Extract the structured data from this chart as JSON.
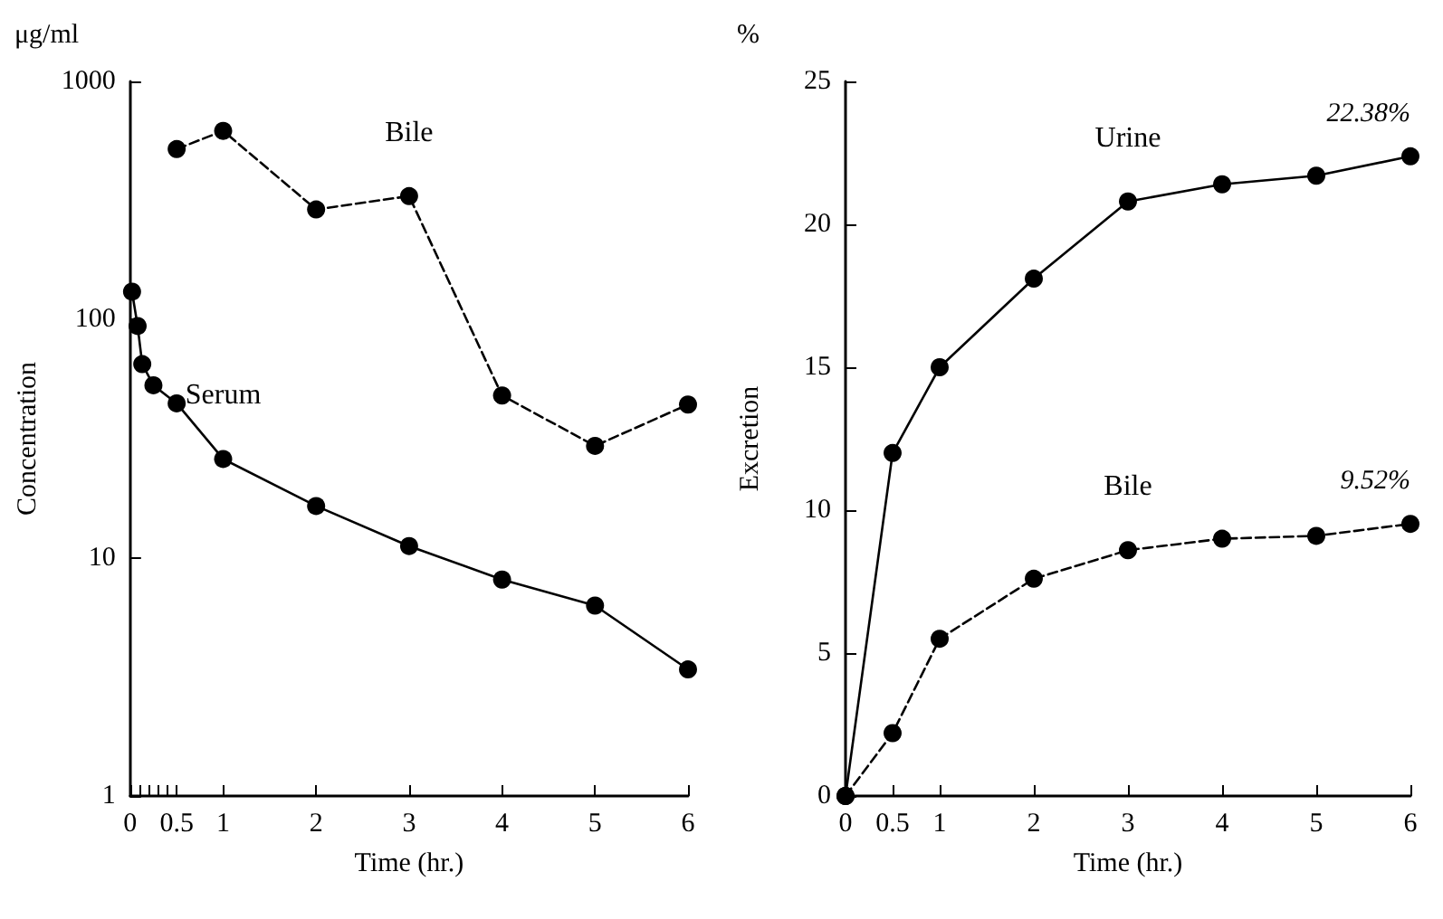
{
  "chart_data": [
    {
      "type": "line",
      "xlabel": "Time (hr.)",
      "ylabel": "Concentration",
      "annotations": [
        "μg/ml"
      ],
      "log": "y",
      "marker": "circle",
      "xlim": [
        0,
        6
      ],
      "xticks": [
        0,
        {
          "value": 0.1,
          "label": null
        },
        {
          "value": 0.2,
          "label": null
        },
        {
          "value": 0.3,
          "label": null
        },
        {
          "value": 0.4,
          "label": null
        },
        0.5,
        1,
        2,
        3,
        4,
        5,
        6
      ],
      "ylim": [
        1,
        1000
      ],
      "yticks": [
        1,
        10,
        100,
        1000
      ],
      "series": [
        {
          "name": "Bile",
          "color": "#000000",
          "line_style": "dashed",
          "x": [
            0.5,
            1,
            2,
            3,
            4,
            5,
            6
          ],
          "values": [
            520,
            620,
            290,
            330,
            48,
            29.5,
            44
          ]
        },
        {
          "name": "Serum",
          "color": "#000000",
          "line_style": "solid",
          "x": [
            0.02,
            0.08,
            0.13,
            0.25,
            0.5,
            1,
            2,
            3,
            4,
            5,
            6
          ],
          "values": [
            131,
            94,
            65,
            53,
            44.5,
            26,
            16.5,
            11.2,
            8.1,
            6.3,
            3.4
          ]
        }
      ]
    },
    {
      "type": "line",
      "xlabel": "Time (hr.)",
      "ylabel": "Excretion",
      "annotations": [
        "%",
        {
          "text": "22.38%",
          "x": 6,
          "y": 22.38
        },
        {
          "text": "9.52%",
          "x": 6,
          "y": 9.52
        }
      ],
      "marker": "circle",
      "xlim": [
        0,
        6
      ],
      "xticks": [
        0,
        0.5,
        1,
        2,
        3,
        4,
        5,
        6
      ],
      "ylim": [
        0,
        25
      ],
      "yticks": [
        0,
        5,
        10,
        15,
        20,
        25
      ],
      "series": [
        {
          "name": "Urine",
          "color": "#000000",
          "line_style": "solid",
          "x": [
            0,
            0.5,
            1,
            2,
            3,
            4,
            5,
            6
          ],
          "values": [
            0,
            12,
            15,
            18.1,
            20.8,
            21.4,
            21.7,
            22.38
          ]
        },
        {
          "name": "Bile",
          "color": "#000000",
          "line_style": "dashed",
          "x": [
            0,
            0.5,
            1,
            2,
            3,
            4,
            5,
            6
          ],
          "values": [
            0,
            2.2,
            5.5,
            7.6,
            8.6,
            9,
            9.1,
            9.52
          ]
        }
      ]
    }
  ]
}
